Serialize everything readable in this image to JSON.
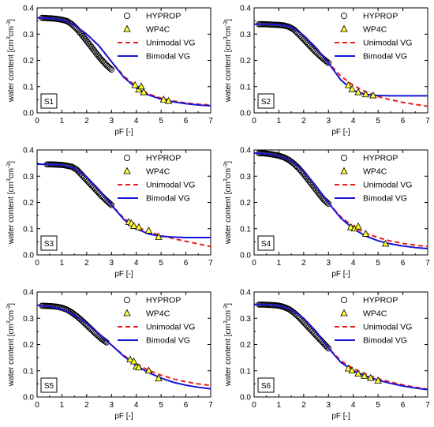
{
  "chart_data": [
    {
      "type": "scatter",
      "panel_label": "S1",
      "xlabel": "pF [-]",
      "ylabel_main": "water content [cm",
      "ylabel_sup1": "3",
      "ylabel_mid": "cm",
      "ylabel_sup2": "-3",
      "ylabel_end": "]",
      "xlim": [
        0,
        7
      ],
      "ylim": [
        0,
        0.4
      ],
      "xticks": [
        0,
        1,
        2,
        3,
        4,
        5,
        6,
        7
      ],
      "yticks": [
        0.0,
        0.1,
        0.2,
        0.3,
        0.4
      ],
      "legend": [
        "HYPROP",
        "WP4C",
        "Unimodal VG",
        "Bimodal VG"
      ],
      "hyprop": {
        "x": [
          0.2,
          0.4,
          0.6,
          0.8,
          1.0,
          1.2,
          1.4,
          1.6,
          1.8,
          2.0,
          2.2,
          2.4,
          2.6,
          2.8,
          3.0
        ],
        "y": [
          0.362,
          0.361,
          0.36,
          0.358,
          0.355,
          0.35,
          0.338,
          0.32,
          0.298,
          0.274,
          0.25,
          0.225,
          0.202,
          0.182,
          0.165
        ]
      },
      "wp4c": {
        "x": [
          3.95,
          4.1,
          4.2,
          4.3,
          5.1,
          5.3
        ],
        "y": [
          0.105,
          0.088,
          0.1,
          0.078,
          0.05,
          0.045
        ]
      },
      "unimodal": {
        "x": [
          0,
          0.5,
          1,
          1.5,
          2,
          2.5,
          3,
          3.5,
          4,
          4.5,
          5,
          5.5,
          6,
          6.5,
          7
        ],
        "y": [
          0.362,
          0.361,
          0.355,
          0.335,
          0.3,
          0.255,
          0.195,
          0.14,
          0.1,
          0.072,
          0.056,
          0.045,
          0.038,
          0.033,
          0.03
        ]
      },
      "bimodal": {
        "x": [
          0,
          0.5,
          1,
          1.5,
          2,
          2.5,
          3,
          3.5,
          4,
          4.5,
          5,
          5.5,
          6,
          6.5,
          7
        ],
        "y": [
          0.362,
          0.361,
          0.355,
          0.335,
          0.3,
          0.255,
          0.195,
          0.135,
          0.095,
          0.068,
          0.052,
          0.042,
          0.035,
          0.03,
          0.027
        ]
      }
    },
    {
      "type": "scatter",
      "panel_label": "S2",
      "xlabel": "pF [-]",
      "ylabel_main": "water content [cm",
      "ylabel_sup1": "3",
      "ylabel_mid": "cm",
      "ylabel_sup2": "-3",
      "ylabel_end": "]",
      "xlim": [
        0,
        7
      ],
      "ylim": [
        0,
        0.4
      ],
      "xticks": [
        0,
        1,
        2,
        3,
        4,
        5,
        6,
        7
      ],
      "yticks": [
        0.0,
        0.1,
        0.2,
        0.3,
        0.4
      ],
      "legend": [
        "HYPROP",
        "WP4C",
        "Unimodal VG",
        "Bimodal VG"
      ],
      "hyprop": {
        "x": [
          0.2,
          0.4,
          0.6,
          0.8,
          1.0,
          1.2,
          1.4,
          1.6,
          1.8,
          2.0,
          2.2,
          2.4,
          2.6,
          2.8,
          3.0
        ],
        "y": [
          0.338,
          0.338,
          0.337,
          0.336,
          0.335,
          0.333,
          0.328,
          0.318,
          0.3,
          0.28,
          0.26,
          0.24,
          0.222,
          0.205,
          0.19
        ]
      },
      "wp4c": {
        "x": [
          3.8,
          3.95,
          4.2,
          4.5,
          4.8
        ],
        "y": [
          0.105,
          0.09,
          0.078,
          0.07,
          0.066
        ]
      },
      "unimodal": {
        "x": [
          0,
          0.5,
          1,
          1.5,
          2,
          2.5,
          3,
          3.5,
          4,
          4.5,
          5,
          5.5,
          6,
          6.5,
          7
        ],
        "y": [
          0.338,
          0.338,
          0.336,
          0.328,
          0.295,
          0.248,
          0.19,
          0.14,
          0.105,
          0.08,
          0.062,
          0.05,
          0.04,
          0.032,
          0.025
        ]
      },
      "bimodal": {
        "x": [
          0,
          0.5,
          1,
          1.5,
          2,
          2.5,
          3,
          3.5,
          4,
          4.5,
          5,
          5.5,
          6,
          6.5,
          7
        ],
        "y": [
          0.338,
          0.338,
          0.336,
          0.328,
          0.295,
          0.248,
          0.19,
          0.125,
          0.085,
          0.07,
          0.066,
          0.065,
          0.065,
          0.065,
          0.065
        ]
      }
    },
    {
      "type": "scatter",
      "panel_label": "S3",
      "xlabel": "pF [-]",
      "ylabel_main": "water content [cm",
      "ylabel_sup1": "3",
      "ylabel_mid": "cm",
      "ylabel_sup2": "-3",
      "ylabel_end": "]",
      "xlim": [
        0,
        7
      ],
      "ylim": [
        0,
        0.4
      ],
      "xticks": [
        0,
        1,
        2,
        3,
        4,
        5,
        6,
        7
      ],
      "yticks": [
        0.0,
        0.1,
        0.2,
        0.3,
        0.4
      ],
      "legend": [
        "HYPROP",
        "WP4C",
        "Unimodal VG",
        "Bimodal VG"
      ],
      "hyprop": {
        "x": [
          0.4,
          0.6,
          0.8,
          1.0,
          1.2,
          1.4,
          1.6,
          1.8,
          2.0,
          2.2,
          2.4,
          2.6,
          2.8,
          3.0
        ],
        "y": [
          0.345,
          0.345,
          0.344,
          0.343,
          0.34,
          0.336,
          0.325,
          0.305,
          0.285,
          0.265,
          0.245,
          0.225,
          0.207,
          0.19
        ]
      },
      "wp4c": {
        "x": [
          3.7,
          3.8,
          3.9,
          4.1,
          4.5,
          4.9
        ],
        "y": [
          0.125,
          0.12,
          0.11,
          0.105,
          0.092,
          0.068
        ]
      },
      "unimodal": {
        "x": [
          0,
          0.5,
          1,
          1.5,
          2,
          2.5,
          3,
          3.5,
          4,
          4.5,
          5,
          5.5,
          6,
          6.5,
          7
        ],
        "y": [
          0.346,
          0.345,
          0.343,
          0.33,
          0.297,
          0.248,
          0.19,
          0.14,
          0.108,
          0.088,
          0.074,
          0.062,
          0.052,
          0.042,
          0.032
        ]
      },
      "bimodal": {
        "x": [
          0,
          0.5,
          1,
          1.5,
          2,
          2.5,
          3,
          3.5,
          4,
          4.5,
          5,
          5.5,
          6,
          6.5,
          7
        ],
        "y": [
          0.346,
          0.345,
          0.343,
          0.33,
          0.297,
          0.248,
          0.19,
          0.135,
          0.1,
          0.08,
          0.071,
          0.068,
          0.066,
          0.066,
          0.066
        ]
      }
    },
    {
      "type": "scatter",
      "panel_label": "S4",
      "xlabel": "pF [-]",
      "ylabel_main": "water content [cm",
      "ylabel_sup1": "3",
      "ylabel_mid": "cm",
      "ylabel_sup2": "-3",
      "ylabel_end": "]",
      "xlim": [
        0,
        7
      ],
      "ylim": [
        0,
        0.4
      ],
      "xticks": [
        0,
        1,
        2,
        3,
        4,
        5,
        6,
        7
      ],
      "yticks": [
        0.0,
        0.1,
        0.2,
        0.3,
        0.4
      ],
      "legend": [
        "HYPROP",
        "WP4C",
        "Unimodal VG",
        "Bimodal VG"
      ],
      "hyprop": {
        "x": [
          0.2,
          0.4,
          0.6,
          0.8,
          1.0,
          1.2,
          1.4,
          1.6,
          1.8,
          2.0,
          2.2,
          2.4,
          2.6,
          2.8,
          3.0
        ],
        "y": [
          0.388,
          0.387,
          0.385,
          0.382,
          0.378,
          0.372,
          0.362,
          0.348,
          0.33,
          0.308,
          0.284,
          0.26,
          0.235,
          0.212,
          0.195
        ]
      },
      "wp4c": {
        "x": [
          3.9,
          4.05,
          4.2,
          4.5,
          5.3
        ],
        "y": [
          0.105,
          0.1,
          0.108,
          0.08,
          0.042
        ]
      },
      "unimodal": {
        "x": [
          0,
          0.5,
          1,
          1.5,
          2,
          2.5,
          3,
          3.5,
          4,
          4.5,
          5,
          5.5,
          6,
          6.5,
          7
        ],
        "y": [
          0.388,
          0.386,
          0.378,
          0.358,
          0.318,
          0.262,
          0.198,
          0.145,
          0.108,
          0.083,
          0.066,
          0.053,
          0.044,
          0.037,
          0.032
        ]
      },
      "bimodal": {
        "x": [
          0,
          0.5,
          1,
          1.5,
          2,
          2.5,
          3,
          3.5,
          4,
          4.5,
          5,
          5.5,
          6,
          6.5,
          7
        ],
        "y": [
          0.388,
          0.386,
          0.378,
          0.358,
          0.318,
          0.262,
          0.198,
          0.14,
          0.1,
          0.072,
          0.054,
          0.042,
          0.034,
          0.028,
          0.024
        ]
      }
    },
    {
      "type": "scatter",
      "panel_label": "S5",
      "xlabel": "pF [-]",
      "ylabel_main": "water content [cm",
      "ylabel_sup1": "3",
      "ylabel_mid": "cm",
      "ylabel_sup2": "-3",
      "ylabel_end": "]",
      "xlim": [
        0,
        7
      ],
      "ylim": [
        0,
        0.4
      ],
      "xticks": [
        0,
        1,
        2,
        3,
        4,
        5,
        6,
        7
      ],
      "yticks": [
        0.0,
        0.1,
        0.2,
        0.3,
        0.4
      ],
      "legend": [
        "HYPROP",
        "WP4C",
        "Unimodal VG",
        "Bimodal VG"
      ],
      "hyprop": {
        "x": [
          0.2,
          0.4,
          0.6,
          0.8,
          1.0,
          1.2,
          1.4,
          1.6,
          1.8,
          2.0,
          2.2,
          2.4,
          2.6,
          2.8
        ],
        "y": [
          0.348,
          0.347,
          0.346,
          0.344,
          0.34,
          0.333,
          0.322,
          0.308,
          0.292,
          0.274,
          0.256,
          0.238,
          0.222,
          0.208
        ]
      },
      "wp4c": {
        "x": [
          3.75,
          3.9,
          4.0,
          4.1,
          4.5,
          4.9
        ],
        "y": [
          0.142,
          0.135,
          0.115,
          0.112,
          0.1,
          0.07
        ]
      },
      "unimodal": {
        "x": [
          0,
          0.5,
          1,
          1.5,
          2,
          2.5,
          3,
          3.5,
          4,
          4.5,
          5,
          5.5,
          6,
          6.5,
          7
        ],
        "y": [
          0.35,
          0.345,
          0.335,
          0.312,
          0.28,
          0.24,
          0.198,
          0.158,
          0.126,
          0.102,
          0.083,
          0.069,
          0.058,
          0.05,
          0.044
        ]
      },
      "bimodal": {
        "x": [
          0,
          0.5,
          1,
          1.5,
          2,
          2.5,
          3,
          3.5,
          4,
          4.5,
          5,
          5.5,
          6,
          6.5,
          7
        ],
        "y": [
          0.35,
          0.345,
          0.335,
          0.312,
          0.28,
          0.24,
          0.198,
          0.155,
          0.12,
          0.093,
          0.072,
          0.056,
          0.045,
          0.037,
          0.031
        ]
      }
    },
    {
      "type": "scatter",
      "panel_label": "S6",
      "xlabel": "pF [-]",
      "ylabel_main": "water content [cm",
      "ylabel_sup1": "3",
      "ylabel_mid": "cm",
      "ylabel_sup2": "-3",
      "ylabel_end": "]",
      "xlim": [
        0,
        7
      ],
      "ylim": [
        0,
        0.4
      ],
      "xticks": [
        0,
        1,
        2,
        3,
        4,
        5,
        6,
        7
      ],
      "yticks": [
        0.0,
        0.1,
        0.2,
        0.3,
        0.4
      ],
      "legend": [
        "HYPROP",
        "WP4C",
        "Unimodal VG",
        "Bimodal VG"
      ],
      "hyprop": {
        "x": [
          0.2,
          0.4,
          0.6,
          0.8,
          1.0,
          1.2,
          1.4,
          1.6,
          1.8,
          2.0,
          2.2,
          2.4,
          2.6,
          2.8,
          3.0
        ],
        "y": [
          0.352,
          0.352,
          0.351,
          0.35,
          0.348,
          0.343,
          0.335,
          0.322,
          0.305,
          0.285,
          0.265,
          0.245,
          0.225,
          0.205,
          0.185
        ]
      },
      "wp4c": {
        "x": [
          3.8,
          3.95,
          4.2,
          4.45,
          4.7,
          5.0
        ],
        "y": [
          0.108,
          0.1,
          0.088,
          0.08,
          0.072,
          0.062
        ]
      },
      "unimodal": {
        "x": [
          0,
          0.5,
          1,
          1.5,
          2,
          2.5,
          3,
          3.5,
          4,
          4.5,
          5,
          5.5,
          6,
          6.5,
          7
        ],
        "y": [
          0.353,
          0.352,
          0.348,
          0.332,
          0.3,
          0.25,
          0.186,
          0.138,
          0.108,
          0.087,
          0.07,
          0.057,
          0.046,
          0.037,
          0.03
        ]
      },
      "bimodal": {
        "x": [
          0,
          0.5,
          1,
          1.5,
          2,
          2.5,
          3,
          3.5,
          4,
          4.5,
          5,
          5.5,
          6,
          6.5,
          7
        ],
        "y": [
          0.353,
          0.352,
          0.348,
          0.332,
          0.3,
          0.25,
          0.186,
          0.132,
          0.1,
          0.08,
          0.064,
          0.052,
          0.042,
          0.034,
          0.028
        ]
      }
    }
  ],
  "style": {
    "hyprop_stroke": "#000000",
    "wp4c_fill": "#ffff33",
    "unimodal_color": "#ee1c1c",
    "bimodal_color": "#1515d6"
  }
}
